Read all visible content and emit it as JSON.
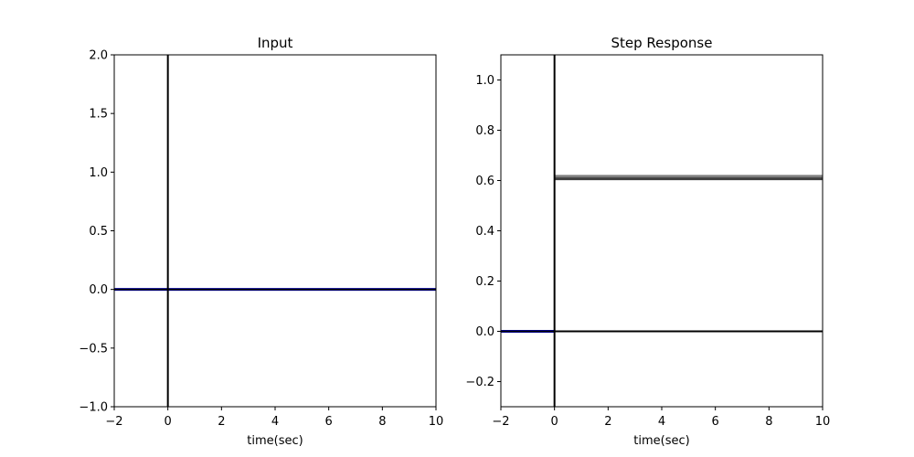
{
  "chart_data": [
    {
      "type": "line",
      "title": "Input",
      "xlabel": "time(sec)",
      "ylabel": "",
      "xlim": [
        -2,
        10
      ],
      "ylim": [
        -1,
        2
      ],
      "xticks": [
        -2,
        0,
        2,
        4,
        6,
        8,
        10
      ],
      "yticks": [
        -1.0,
        -0.5,
        0.0,
        0.5,
        1.0,
        1.5,
        2.0
      ],
      "xtick_labels": [
        "−2",
        "0",
        "2",
        "4",
        "6",
        "8",
        "10"
      ],
      "ytick_labels": [
        "−1.0",
        "−0.5",
        "0.0",
        "0.5",
        "1.0",
        "1.5",
        "2.0"
      ],
      "grid": false,
      "reference_lines": {
        "x": 0,
        "y": 0,
        "color": "#000000"
      },
      "series": [
        {
          "color": "#0000ff",
          "x": [
            -2,
            10
          ],
          "y": [
            0,
            0
          ]
        }
      ]
    },
    {
      "type": "line",
      "title": "Step Response",
      "xlabel": "time(sec)",
      "ylabel": "",
      "xlim": [
        -2,
        10
      ],
      "ylim": [
        -0.3,
        1.1
      ],
      "xticks": [
        -2,
        0,
        2,
        4,
        6,
        8,
        10
      ],
      "yticks": [
        -0.2,
        0.0,
        0.2,
        0.4,
        0.6,
        0.8,
        1.0
      ],
      "xtick_labels": [
        "−2",
        "0",
        "2",
        "4",
        "6",
        "8",
        "10"
      ],
      "ytick_labels": [
        "−0.2",
        "0.0",
        "0.2",
        "0.4",
        "0.6",
        "0.8",
        "1.0"
      ],
      "grid": false,
      "reference_lines": {
        "x": 0,
        "y": 0,
        "color": "#000000"
      },
      "series": [
        {
          "color": "#0000ff",
          "x": [
            -2,
            0
          ],
          "y": [
            0,
            0
          ]
        },
        {
          "color": "#7f7f7f",
          "x": [
            0,
            10
          ],
          "y": [
            0.617,
            0.617
          ]
        },
        {
          "color": "#3f3f3f",
          "x": [
            0,
            10
          ],
          "y": [
            0.607,
            0.607
          ]
        }
      ]
    }
  ]
}
